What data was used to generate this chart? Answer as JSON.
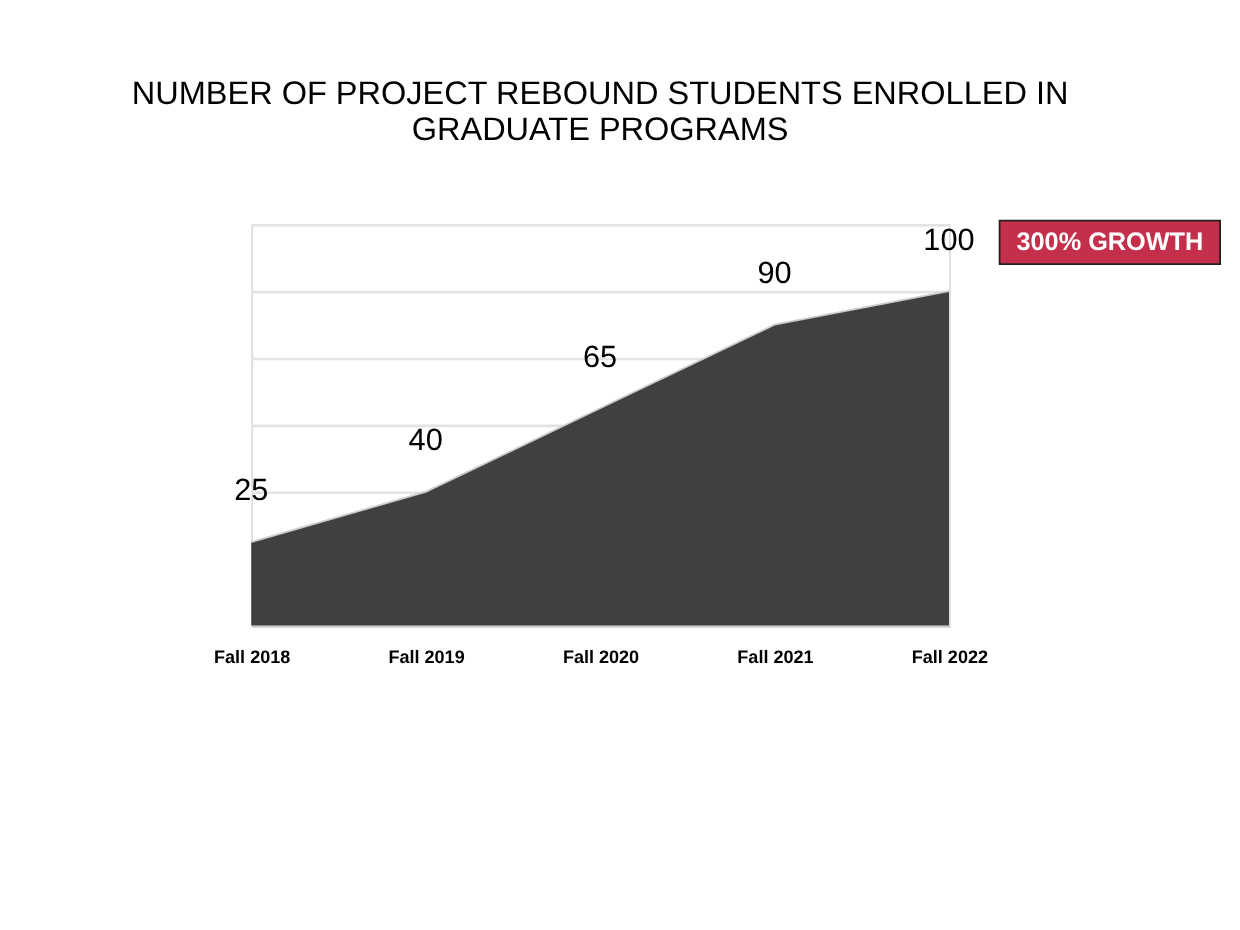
{
  "chart_data": {
    "type": "area",
    "title": [
      "NUMBER OF PROJECT REBOUND STUDENTS ENROLLED IN",
      "GRADUATE PROGRAMS"
    ],
    "categories": [
      "Fall 2018",
      "Fall 2019",
      "Fall 2020",
      "Fall 2021",
      "Fall 2022"
    ],
    "series": [
      {
        "color": "#404040",
        "values": [
          25,
          40,
          65,
          90,
          100
        ]
      }
    ],
    "ylim": [
      0,
      120
    ],
    "grid": "y",
    "tick_labels": "x",
    "data_labels": true,
    "annotations": [
      "300% GROWTH"
    ]
  }
}
